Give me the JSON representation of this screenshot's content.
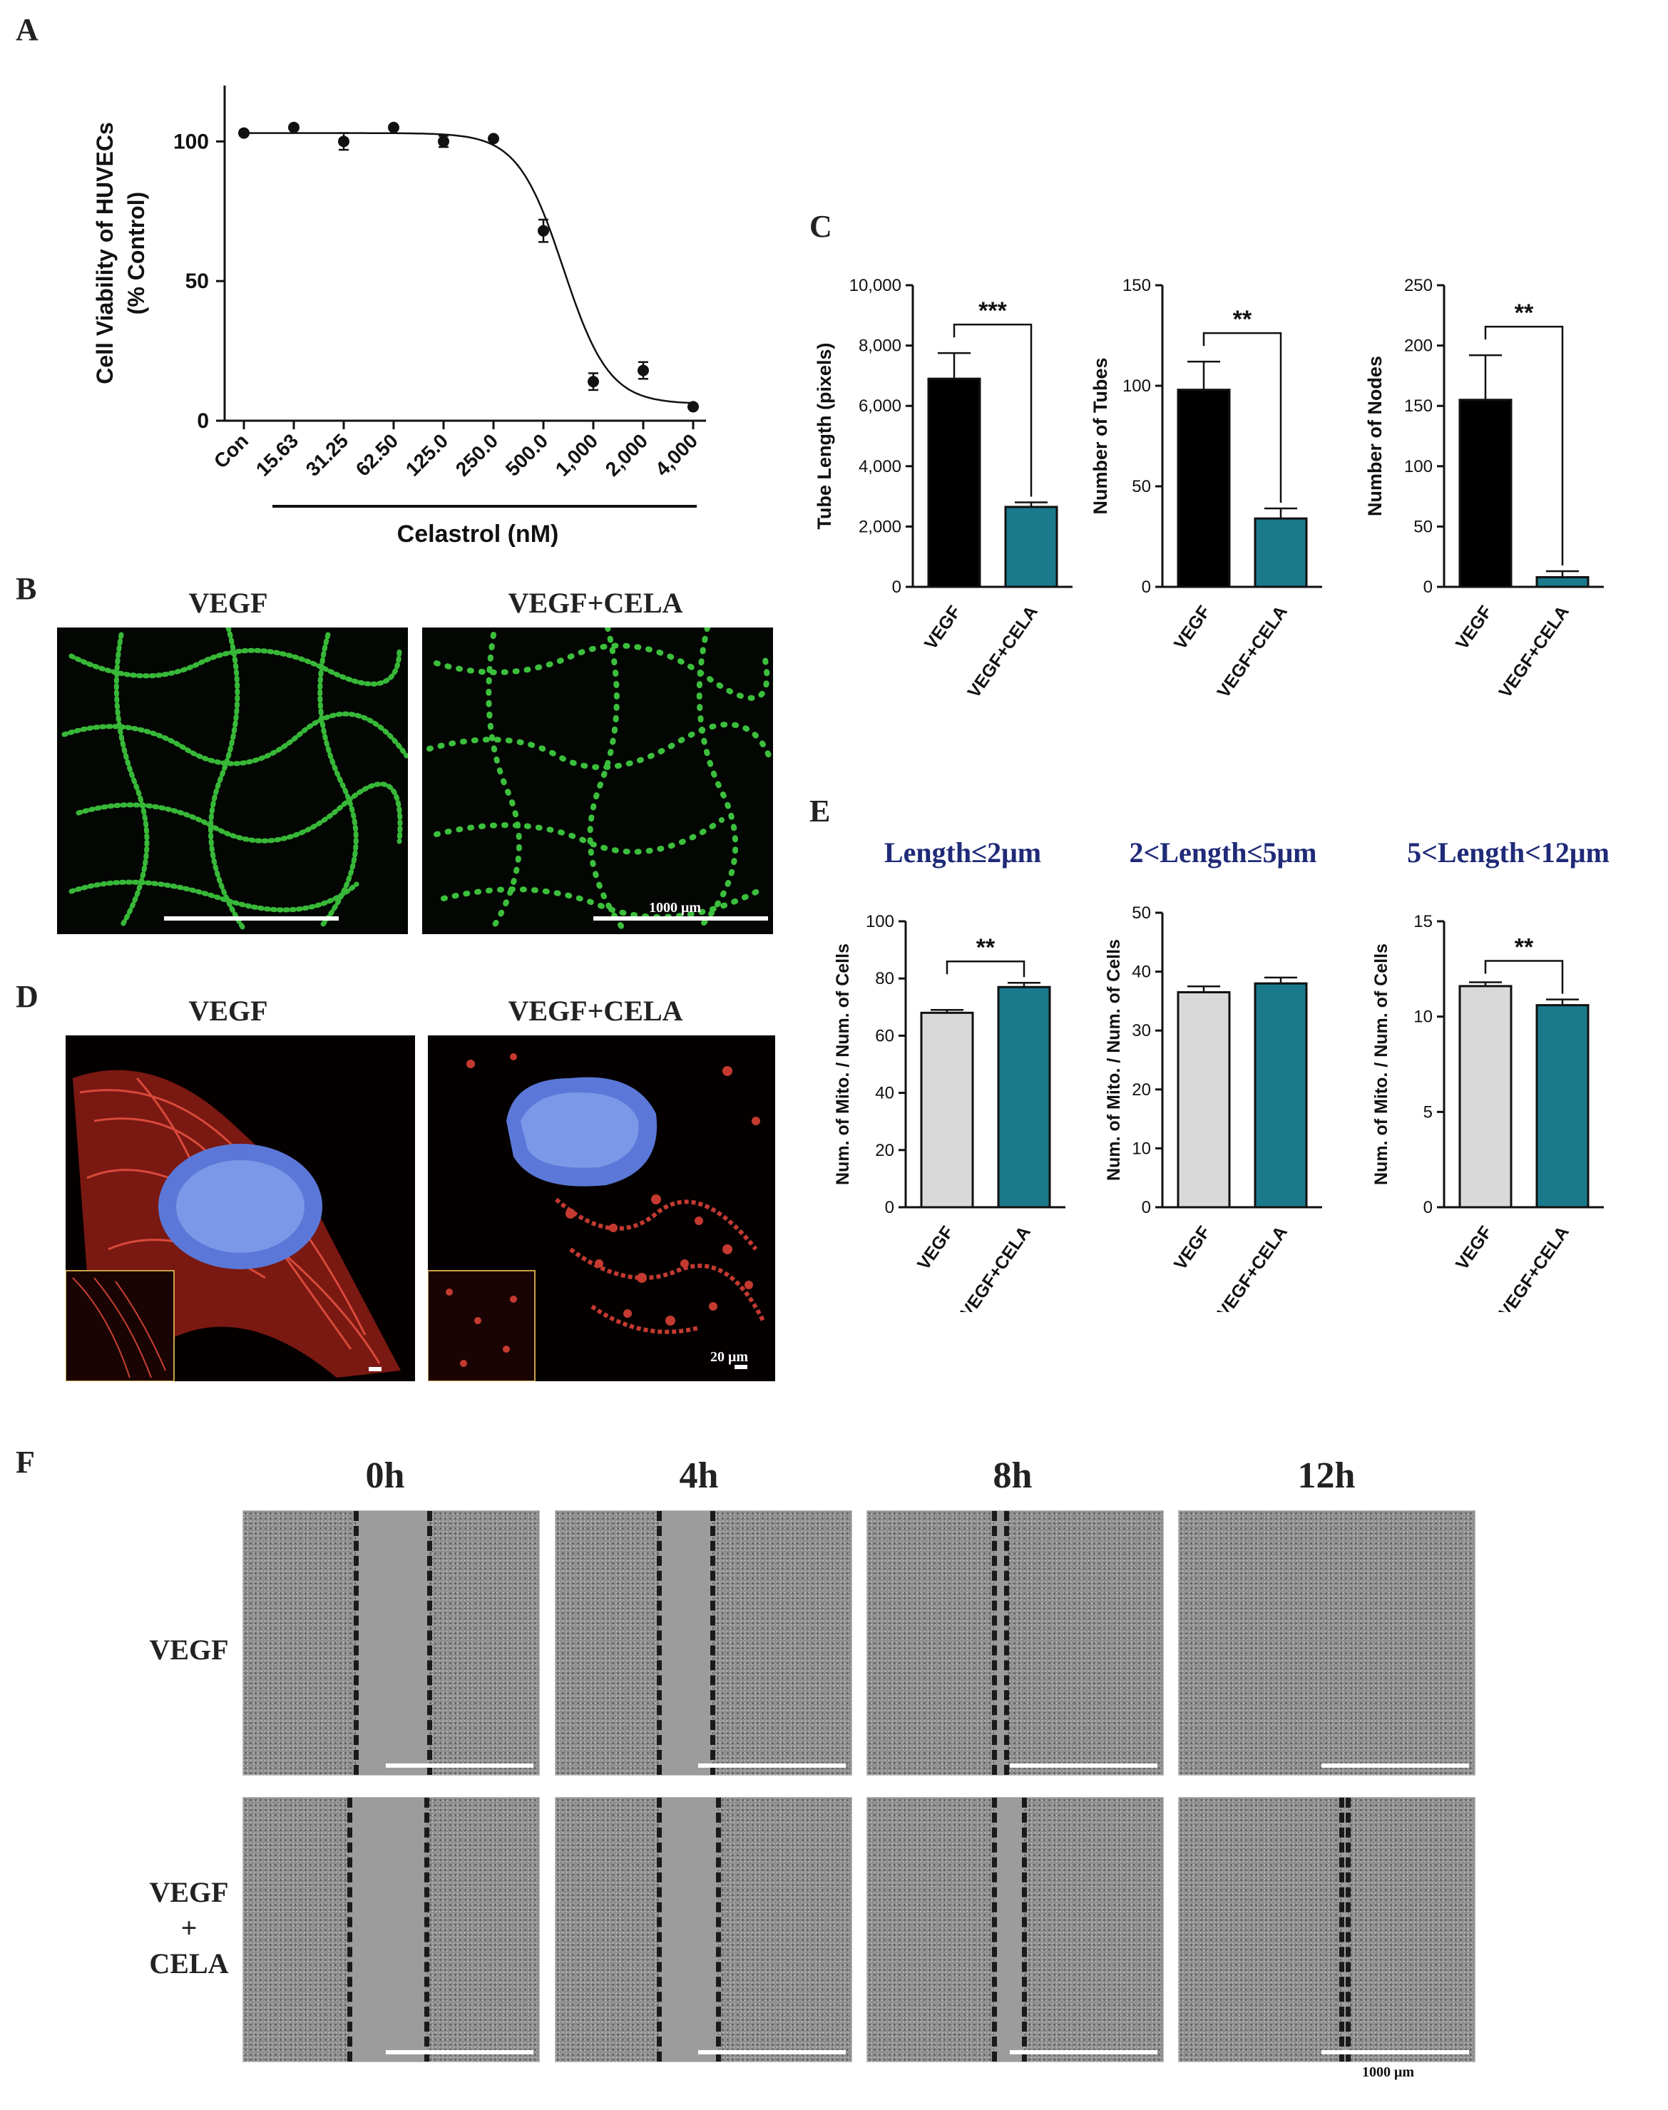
{
  "panels": {
    "A": "A",
    "B": "B",
    "C": "C",
    "D": "D",
    "E": "E",
    "F": "F"
  },
  "panel_a": {
    "ylabel_line1": "Cell Viability of HUVECs",
    "ylabel_line2": "(% Control)",
    "xlabel": "Celastrol (nM)"
  },
  "panel_b": {
    "labels": [
      "VEGF",
      "VEGF+CELA"
    ],
    "scale": "1000 μm"
  },
  "panel_d": {
    "labels": [
      "VEGF",
      "VEGF+CELA"
    ],
    "scale": "20 μm"
  },
  "panel_e": {
    "titles": [
      "Length≤2μm",
      "2<Length≤5μm",
      "5<Length<12μm"
    ]
  },
  "panel_f": {
    "times": [
      "0h",
      "4h",
      "8h",
      "12h"
    ],
    "rows": [
      "VEGF",
      "VEGF\n+\nCELA"
    ],
    "row1": "VEGF",
    "row2_line1": "VEGF",
    "row2_line2": "+",
    "row2_line3": "CELA",
    "scale": "1000 μm"
  },
  "colors": {
    "black_bar": "#000000",
    "teal_bar": "#1a7a8c",
    "grey_bar": "#d9d9d9",
    "e_title": "#1f2a78"
  },
  "chart_data": [
    {
      "id": "A",
      "type": "scatter",
      "title": "",
      "xlabel": "Celastrol (nM)",
      "ylabel": "Cell Viability of HUVECs (% Control)",
      "categories": [
        "Con",
        "15.63",
        "31.25",
        "62.50",
        "125.0",
        "250.0",
        "500.0",
        "1,000",
        "2,000",
        "4,000"
      ],
      "values": [
        103,
        105,
        100,
        105,
        100,
        101,
        68,
        14,
        18,
        5
      ],
      "errors": [
        0,
        0,
        3,
        0,
        2,
        0,
        4,
        3,
        3,
        0
      ],
      "yticks": [
        0,
        50,
        100
      ],
      "ylim": [
        0,
        120
      ],
      "fit": "sigmoidal dose-response curve"
    },
    {
      "id": "C1",
      "type": "bar",
      "ylabel": "Tube Length (pixels)",
      "categories": [
        "VEGF",
        "VEGF+CELA"
      ],
      "values": [
        6900,
        2650
      ],
      "errors": [
        850,
        150
      ],
      "yticks": [
        "0",
        "2,000",
        "4,000",
        "6,000",
        "8,000",
        "10,000"
      ],
      "ylim": [
        0,
        10000
      ],
      "significance": "***"
    },
    {
      "id": "C2",
      "type": "bar",
      "ylabel": "Number of Tubes",
      "categories": [
        "VEGF",
        "VEGF+CELA"
      ],
      "values": [
        98,
        34
      ],
      "errors": [
        14,
        5
      ],
      "yticks": [
        "0",
        "50",
        "100",
        "150"
      ],
      "ylim": [
        0,
        150
      ],
      "significance": "**"
    },
    {
      "id": "C3",
      "type": "bar",
      "ylabel": "Number of Nodes",
      "categories": [
        "VEGF",
        "VEGF+CELA"
      ],
      "values": [
        155,
        8
      ],
      "errors": [
        37,
        5
      ],
      "yticks": [
        "0",
        "50",
        "100",
        "150",
        "200",
        "250"
      ],
      "ylim": [
        0,
        250
      ],
      "significance": "**"
    },
    {
      "id": "E1",
      "type": "bar",
      "title": "Length≤2μm",
      "ylabel": "Num. of Mito. / Num. of Cells",
      "categories": [
        "VEGF",
        "VEGF+CELA"
      ],
      "values": [
        68,
        77
      ],
      "errors": [
        1,
        1.5
      ],
      "yticks": [
        "0",
        "20",
        "40",
        "60",
        "80",
        "100"
      ],
      "ylim": [
        0,
        100
      ],
      "significance": "**"
    },
    {
      "id": "E2",
      "type": "bar",
      "title": "2<Length≤5μm",
      "ylabel": "Num. of Mito. / Num. of Cells",
      "categories": [
        "VEGF",
        "VEGF+CELA"
      ],
      "values": [
        36.5,
        38
      ],
      "errors": [
        1,
        1
      ],
      "yticks": [
        "0",
        "10",
        "20",
        "30",
        "40",
        "50"
      ],
      "ylim": [
        0,
        50
      ],
      "significance": ""
    },
    {
      "id": "E3",
      "type": "bar",
      "title": "5<Length<12μm",
      "ylabel": "Num. of Mito. / Num. of Cells",
      "categories": [
        "VEGF",
        "VEGF+CELA"
      ],
      "values": [
        11.6,
        10.6
      ],
      "errors": [
        0.2,
        0.3
      ],
      "yticks": [
        "0",
        "5",
        "10",
        "15"
      ],
      "ylim": [
        0,
        15
      ],
      "significance": "**"
    }
  ]
}
